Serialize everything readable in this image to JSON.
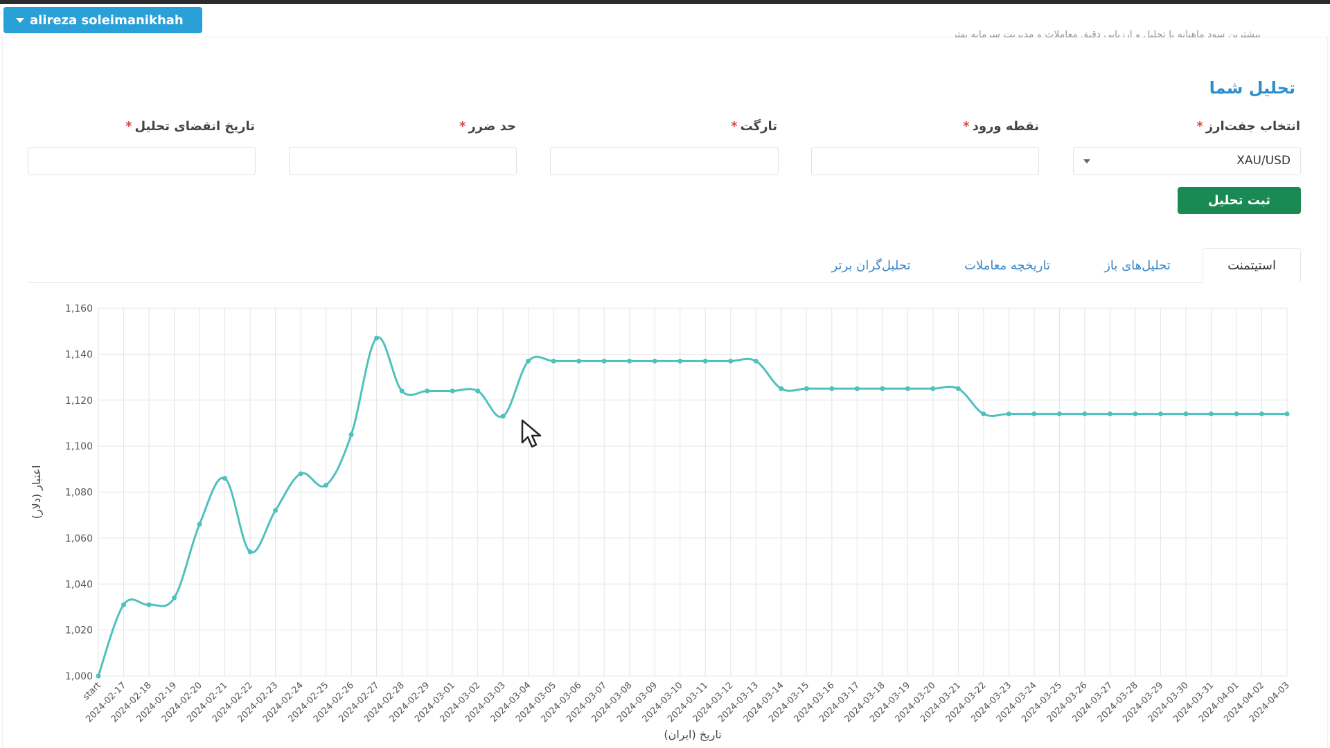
{
  "header": {
    "user_name": "alireza soleimanikhah",
    "faded_text": "بیشترین سود ماهیانه با تحلیل و ارزیابی دقیق معاملات و مدیریت سرمایه بهتر"
  },
  "form": {
    "title": "تحلیل شما",
    "fields": [
      {
        "label": "انتخاب جفت‌ارز",
        "required": "*",
        "value": "XAU/USD"
      },
      {
        "label": "نقطه ورود",
        "required": "*",
        "value": ""
      },
      {
        "label": "تارگت",
        "required": "*",
        "value": ""
      },
      {
        "label": "حد ضرر",
        "required": "*",
        "value": ""
      },
      {
        "label": "تاریخ انقضای تحلیل",
        "required": "*",
        "value": ""
      }
    ],
    "submit_label": "ثبت تحلیل"
  },
  "tabs": [
    {
      "label": "استیتمنت",
      "active": true
    },
    {
      "label": "تحلیل‌های باز",
      "active": false
    },
    {
      "label": "تاریخچه معاملات",
      "active": false
    },
    {
      "label": "تحلیل‌گران برتر",
      "active": false
    }
  ],
  "colors": {
    "primary": "#2aa0d8",
    "submit": "#1a8a55",
    "line": "#4fc1bd",
    "title": "#2a8fcb"
  },
  "chart_data": {
    "type": "line",
    "xlabel": "تاریخ (ایران)",
    "ylabel": "اعتبار (دلار)",
    "ylim": [
      1000,
      1160
    ],
    "yticks": [
      "1,000",
      "1,020",
      "1,040",
      "1,060",
      "1,080",
      "1,100",
      "1,120",
      "1,140",
      "1,160"
    ],
    "grid": true,
    "x": [
      "start",
      "2024-02-17",
      "2024-02-18",
      "2024-02-19",
      "2024-02-20",
      "2024-02-21",
      "2024-02-22",
      "2024-02-23",
      "2024-02-24",
      "2024-02-25",
      "2024-02-26",
      "2024-02-27",
      "2024-02-28",
      "2024-02-29",
      "2024-03-01",
      "2024-03-02",
      "2024-03-03",
      "2024-03-04",
      "2024-03-05",
      "2024-03-06",
      "2024-03-07",
      "2024-03-08",
      "2024-03-09",
      "2024-03-10",
      "2024-03-11",
      "2024-03-12",
      "2024-03-13",
      "2024-03-14",
      "2024-03-15",
      "2024-03-16",
      "2024-03-17",
      "2024-03-18",
      "2024-03-19",
      "2024-03-20",
      "2024-03-21",
      "2024-03-22",
      "2024-03-23",
      "2024-03-24",
      "2024-03-25",
      "2024-03-26",
      "2024-03-27",
      "2024-03-28",
      "2024-03-29",
      "2024-03-30",
      "2024-03-31",
      "2024-04-01",
      "2024-04-02",
      "2024-04-03"
    ],
    "values": [
      1000,
      1031,
      1031,
      1034,
      1066,
      1086,
      1054,
      1072,
      1088,
      1083,
      1105,
      1147,
      1124,
      1124,
      1124,
      1124,
      1113,
      1137,
      1137,
      1137,
      1137,
      1137,
      1137,
      1137,
      1137,
      1137,
      1137,
      1125,
      1125,
      1125,
      1125,
      1125,
      1125,
      1125,
      1125,
      1114,
      1114,
      1114,
      1114,
      1114,
      1114,
      1114,
      1114,
      1114,
      1114,
      1114,
      1114,
      1114
    ]
  }
}
